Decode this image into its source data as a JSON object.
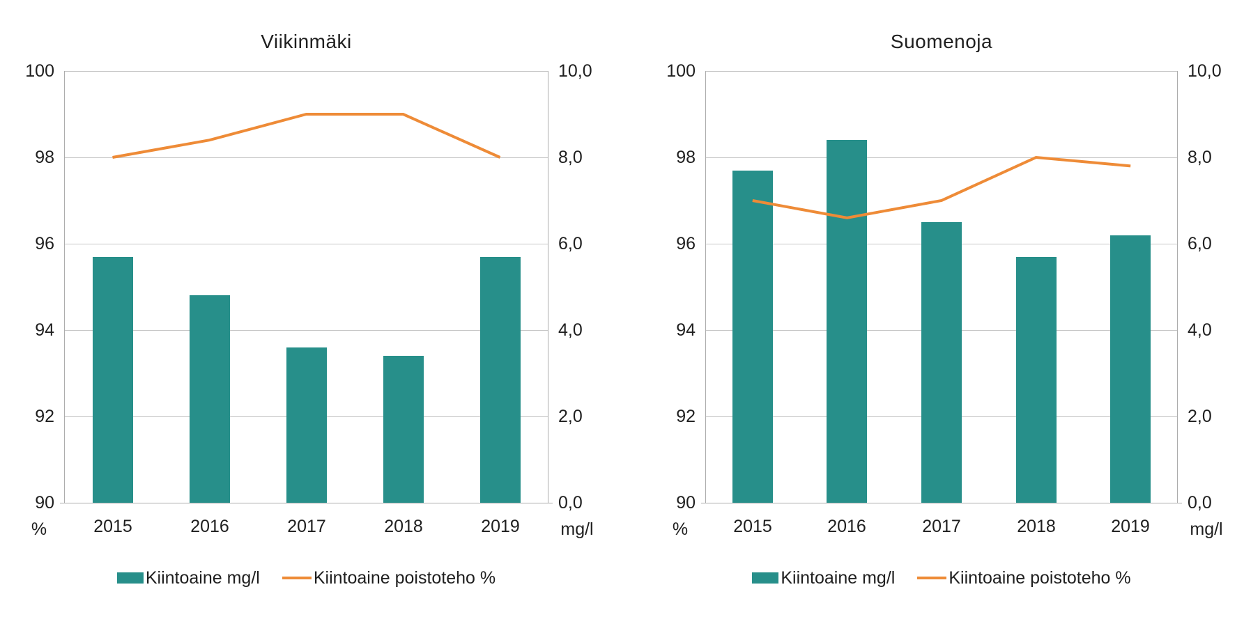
{
  "colors": {
    "bar": "#278F8A",
    "line": "#EE8B37",
    "gridline": "#C6C6C6",
    "axis": "#ACACAC",
    "text": "#1F1F1F",
    "background": "#FFFFFF"
  },
  "chart_data": [
    {
      "type": "bar",
      "title": "Viikinmäki",
      "categories": [
        "2015",
        "2016",
        "2017",
        "2018",
        "2019"
      ],
      "series": [
        {
          "name": "Kiintoaine mg/l",
          "kind": "bar",
          "axis": "right",
          "values": [
            5.7,
            4.8,
            3.6,
            3.4,
            5.7
          ]
        },
        {
          "name": "Kiintoaine poistoteho %",
          "kind": "line",
          "axis": "left",
          "values": [
            98.0,
            98.4,
            99.0,
            99.0,
            98.0
          ]
        }
      ],
      "left_axis": {
        "unit": "%",
        "min": 90,
        "max": 100,
        "tick_labels": [
          "100",
          "98",
          "96",
          "94",
          "92",
          "90"
        ]
      },
      "right_axis": {
        "unit": "mg/l",
        "min": 0,
        "max": 10,
        "tick_labels": [
          "10,0",
          "8,0",
          "6,0",
          "4,0",
          "2,0",
          "0,0"
        ]
      },
      "grid": "horizontal-only",
      "legend_position": "bottom"
    },
    {
      "type": "bar",
      "title": "Suomenoja",
      "categories": [
        "2015",
        "2016",
        "2017",
        "2018",
        "2019"
      ],
      "series": [
        {
          "name": "Kiintoaine mg/l",
          "kind": "bar",
          "axis": "right",
          "values": [
            7.7,
            8.4,
            6.5,
            5.7,
            6.2
          ]
        },
        {
          "name": "Kiintoaine poistoteho %",
          "kind": "line",
          "axis": "left",
          "values": [
            97.0,
            96.6,
            97.0,
            98.0,
            97.8
          ]
        }
      ],
      "left_axis": {
        "unit": "%",
        "min": 90,
        "max": 100,
        "tick_labels": [
          "100",
          "98",
          "96",
          "94",
          "92",
          "90"
        ]
      },
      "right_axis": {
        "unit": "mg/l",
        "min": 0,
        "max": 10,
        "tick_labels": [
          "10,0",
          "8,0",
          "6,0",
          "4,0",
          "2,0",
          "0,0"
        ]
      },
      "grid": "horizontal-only",
      "legend_position": "bottom"
    }
  ]
}
